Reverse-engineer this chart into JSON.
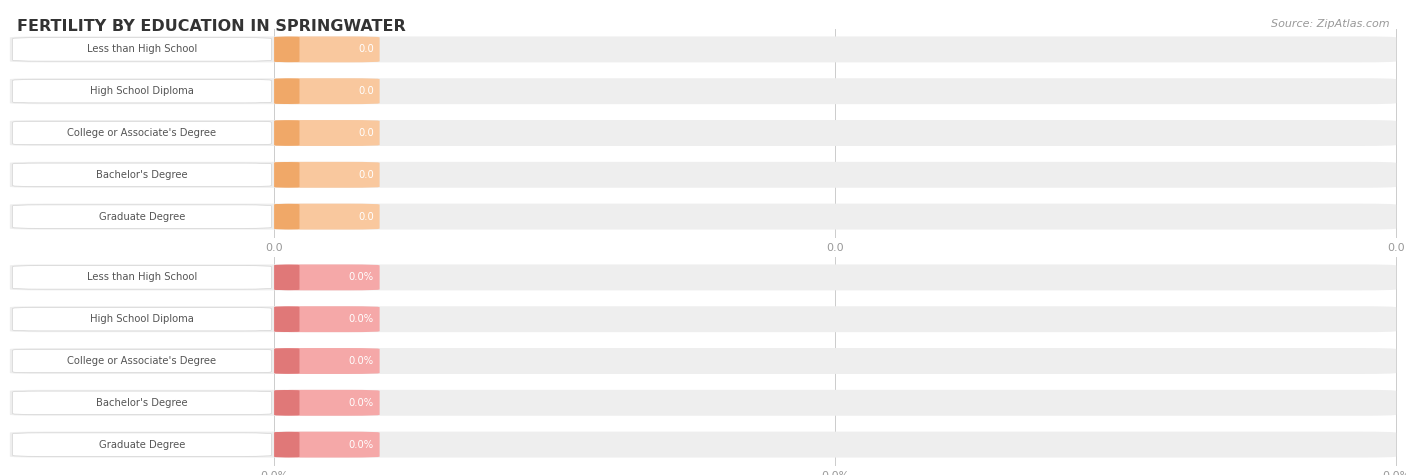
{
  "title": "FERTILITY BY EDUCATION IN SPRINGWATER",
  "source_text": "Source: ZipAtlas.com",
  "categories": [
    "Less than High School",
    "High School Diploma",
    "College or Associate's Degree",
    "Bachelor's Degree",
    "Graduate Degree"
  ],
  "top_values": [
    0.0,
    0.0,
    0.0,
    0.0,
    0.0
  ],
  "bottom_values": [
    0.0,
    0.0,
    0.0,
    0.0,
    0.0
  ],
  "top_bar_color": "#f9c89e",
  "top_left_cap_color": "#f0a868",
  "bottom_bar_color": "#f5a8a8",
  "bottom_left_cap_color": "#e07878",
  "bg_track_color": "#eeeeee",
  "title_color": "#333333",
  "label_color": "#555555",
  "value_label_color": "#ffffff",
  "tick_color": "#999999",
  "source_color": "#999999",
  "grid_color": "#cccccc",
  "background_color": "#ffffff",
  "figsize": [
    14.06,
    4.75
  ],
  "dpi": 100
}
